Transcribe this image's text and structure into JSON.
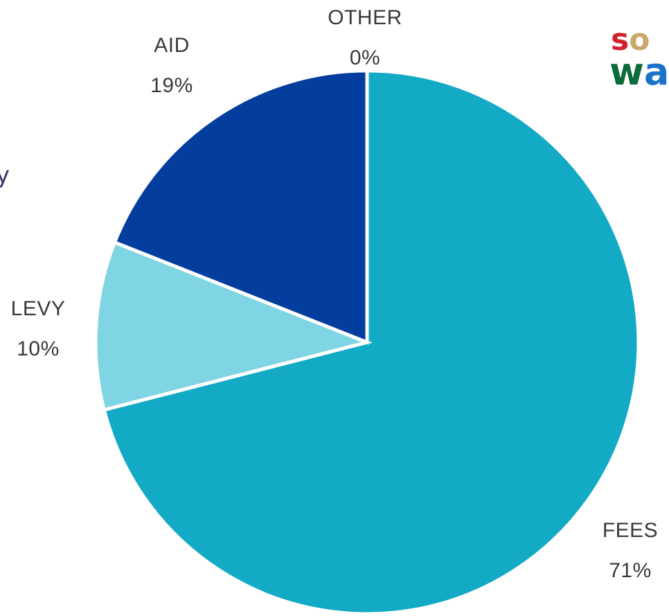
{
  "chart_data": {
    "type": "pie",
    "title": "",
    "categories": [
      "FEES",
      "LEVY",
      "AID",
      "OTHER"
    ],
    "values": [
      71,
      10,
      19,
      0
    ],
    "value_labels": [
      "71%",
      "10%",
      "19%",
      "0%"
    ],
    "colors": [
      "#12aac5",
      "#7fd5e3",
      "#033e9e",
      "#8fd1dc"
    ],
    "start_angle_deg": 0,
    "direction": "clockwise",
    "legend": "none",
    "grid": false
  },
  "logo": {
    "line1": "so",
    "line2": "wa",
    "colors": {
      "s": "#d4202a",
      "o": "#c8a96a",
      "w": "#0b6b3a",
      "a": "#1a73c9"
    }
  },
  "edge_text": "y"
}
